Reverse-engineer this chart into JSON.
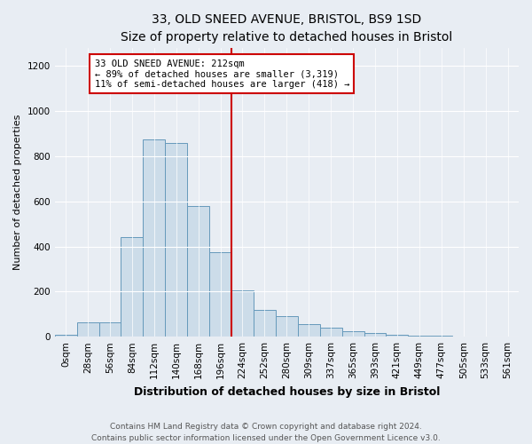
{
  "title1": "33, OLD SNEED AVENUE, BRISTOL, BS9 1SD",
  "title2": "Size of property relative to detached houses in Bristol",
  "xlabel": "Distribution of detached houses by size in Bristol",
  "ylabel": "Number of detached properties",
  "bar_labels": [
    "0sqm",
    "28sqm",
    "56sqm",
    "84sqm",
    "112sqm",
    "140sqm",
    "168sqm",
    "196sqm",
    "224sqm",
    "252sqm",
    "280sqm",
    "309sqm",
    "337sqm",
    "365sqm",
    "393sqm",
    "421sqm",
    "449sqm",
    "477sqm",
    "505sqm",
    "533sqm",
    "561sqm"
  ],
  "bar_values": [
    10,
    65,
    65,
    440,
    875,
    860,
    580,
    375,
    205,
    120,
    90,
    55,
    40,
    25,
    18,
    8,
    5,
    3,
    2,
    2,
    2
  ],
  "bar_color": "#ccdce9",
  "bar_edge_color": "#6699bb",
  "vline_color": "#cc0000",
  "annotation_text": "33 OLD SNEED AVENUE: 212sqm\n← 89% of detached houses are smaller (3,319)\n11% of semi-detached houses are larger (418) →",
  "annotation_box_color": "#ffffff",
  "annotation_box_edge": "#cc0000",
  "ylim": [
    0,
    1280
  ],
  "yticks": [
    0,
    200,
    400,
    600,
    800,
    1000,
    1200
  ],
  "footer1": "Contains HM Land Registry data © Crown copyright and database right 2024.",
  "footer2": "Contains public sector information licensed under the Open Government Licence v3.0.",
  "bg_color": "#e8edf3",
  "plot_bg_color": "#e8edf3",
  "title_fontsize": 10,
  "xlabel_fontsize": 9,
  "ylabel_fontsize": 8,
  "tick_fontsize": 7.5,
  "annotation_fontsize": 7.5,
  "footer_fontsize": 6.5
}
